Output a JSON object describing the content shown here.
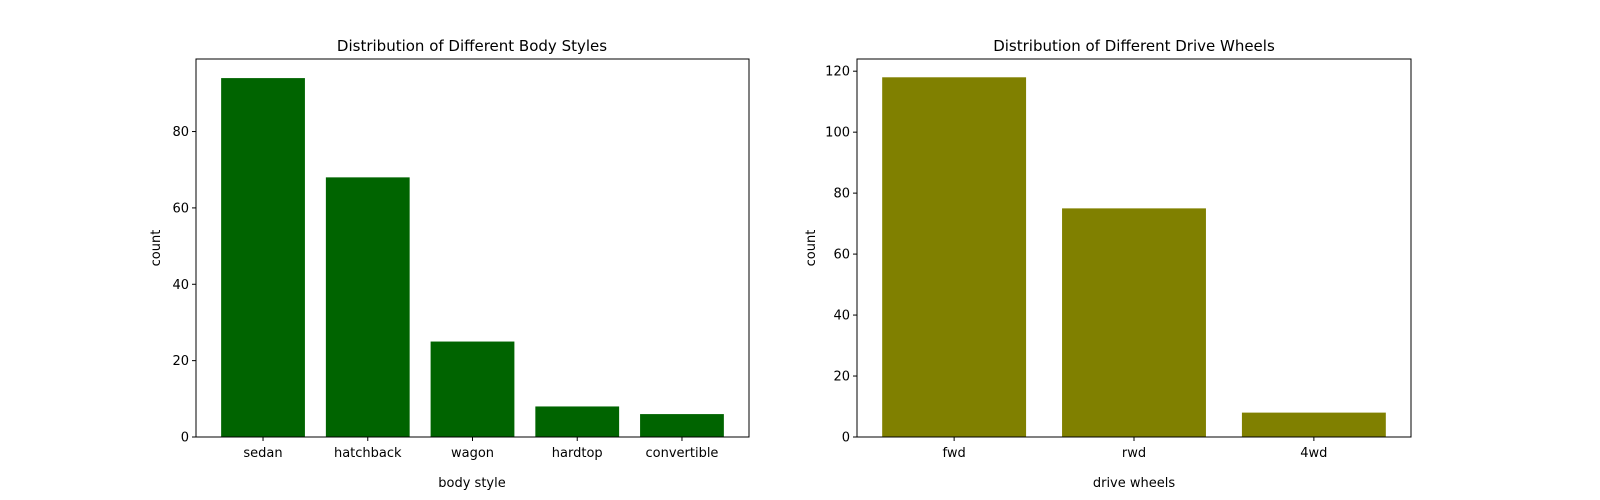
{
  "chart_data": [
    {
      "type": "bar",
      "title": "Distribution of Different Body Styles",
      "xlabel": "body style",
      "ylabel": "count",
      "categories": [
        "sedan",
        "hatchback",
        "wagon",
        "hardtop",
        "convertible"
      ],
      "values": [
        94,
        68,
        25,
        8,
        6
      ],
      "ylim": [
        0,
        99
      ],
      "yticks": [
        0,
        20,
        40,
        60,
        80
      ],
      "color": "#006400",
      "grid": false
    },
    {
      "type": "bar",
      "title": "Distribution of Different Drive Wheels",
      "xlabel": "drive wheels",
      "ylabel": "count",
      "categories": [
        "fwd",
        "rwd",
        "4wd"
      ],
      "values": [
        118,
        75,
        8
      ],
      "ylim": [
        0,
        124
      ],
      "yticks": [
        0,
        20,
        40,
        60,
        80,
        100,
        120
      ],
      "color": "#808000",
      "grid": false
    }
  ]
}
